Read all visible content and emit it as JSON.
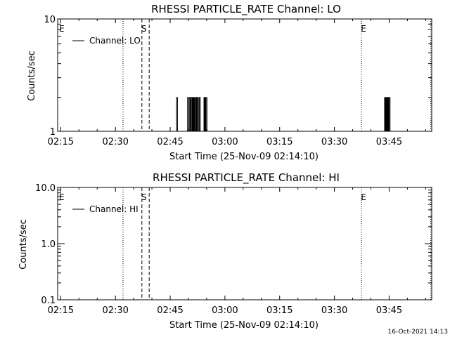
{
  "stamp": "16-Oct-2021 14:13",
  "chart_data": [
    {
      "type": "line",
      "title": "RHESSI PARTICLE_RATE Channel: LO",
      "xlabel": "Start Time (25-Nov-09 02:14:10)",
      "ylabel": "Counts/sec",
      "xlim": [
        0,
        6150
      ],
      "ylim": [
        1,
        10
      ],
      "yscale": "log",
      "x_ticks": [
        50,
        950,
        1850,
        2750,
        3650,
        4550,
        5450
      ],
      "x_tick_labels": [
        "02:15",
        "02:30",
        "02:45",
        "03:00",
        "03:15",
        "03:30",
        "03:45"
      ],
      "y_ticks": [
        1,
        10
      ],
      "y_tick_labels": [
        "1",
        "10"
      ],
      "legend": "top-left",
      "series": [
        {
          "name": "Channel: LO",
          "step_points": [
            [
              1950,
              1
            ],
            [
              1955,
              2
            ],
            [
              1970,
              1
            ],
            [
              2130,
              1
            ],
            [
              2135,
              2
            ],
            [
              2155,
              1
            ],
            [
              2165,
              2
            ],
            [
              2180,
              1
            ],
            [
              2190,
              2
            ],
            [
              2205,
              1
            ],
            [
              2215,
              2
            ],
            [
              2225,
              1
            ],
            [
              2235,
              2
            ],
            [
              2245,
              1
            ],
            [
              2255,
              2
            ],
            [
              2270,
              1
            ],
            [
              2280,
              2
            ],
            [
              2290,
              1
            ],
            [
              2300,
              2
            ],
            [
              2315,
              1
            ],
            [
              2330,
              2
            ],
            [
              2345,
              1
            ],
            [
              2400,
              1
            ],
            [
              2405,
              2
            ],
            [
              2415,
              1
            ],
            [
              2420,
              2
            ],
            [
              2430,
              1
            ],
            [
              2440,
              2
            ],
            [
              2455,
              1
            ],
            [
              5370,
              1
            ],
            [
              5375,
              2
            ],
            [
              5385,
              1
            ],
            [
              5390,
              2
            ],
            [
              5400,
              1
            ],
            [
              5410,
              2
            ],
            [
              5420,
              1
            ],
            [
              5430,
              2
            ],
            [
              5440,
              1
            ],
            [
              5450,
              2
            ],
            [
              5465,
              1
            ],
            [
              5480,
              1
            ]
          ]
        }
      ],
      "markers": [
        {
          "x": 1075,
          "style": "dotted",
          "label": ""
        },
        {
          "x": 1385,
          "style": "dashed",
          "label": "S"
        },
        {
          "x": 1505,
          "style": "dashed",
          "label": ""
        },
        {
          "x": 4995,
          "style": "dotted",
          "label": "E"
        },
        {
          "x": 6135,
          "style": "dotted",
          "label": ""
        },
        {
          "x": 0,
          "style": "none",
          "label": "E"
        }
      ]
    },
    {
      "type": "line",
      "title": "RHESSI PARTICLE_RATE Channel: HI",
      "xlabel": "Start Time (25-Nov-09 02:14:10)",
      "ylabel": "Counts/sec",
      "xlim": [
        0,
        6150
      ],
      "ylim": [
        0.1,
        10
      ],
      "yscale": "log",
      "x_ticks": [
        50,
        950,
        1850,
        2750,
        3650,
        4550,
        5450
      ],
      "x_tick_labels": [
        "02:15",
        "02:30",
        "02:45",
        "03:00",
        "03:15",
        "03:30",
        "03:45"
      ],
      "y_ticks": [
        0.1,
        1,
        10
      ],
      "y_tick_labels": [
        "0.1",
        "1.0",
        "10.0"
      ],
      "legend": "top-left",
      "series": [
        {
          "name": "Channel: HI",
          "step_points": []
        }
      ],
      "markers": [
        {
          "x": 1075,
          "style": "dotted",
          "label": ""
        },
        {
          "x": 1385,
          "style": "dashed",
          "label": "S"
        },
        {
          "x": 1505,
          "style": "dashed",
          "label": ""
        },
        {
          "x": 4995,
          "style": "dotted",
          "label": "E"
        },
        {
          "x": 6135,
          "style": "dotted",
          "label": ""
        },
        {
          "x": 0,
          "style": "none",
          "label": "E"
        }
      ]
    }
  ]
}
